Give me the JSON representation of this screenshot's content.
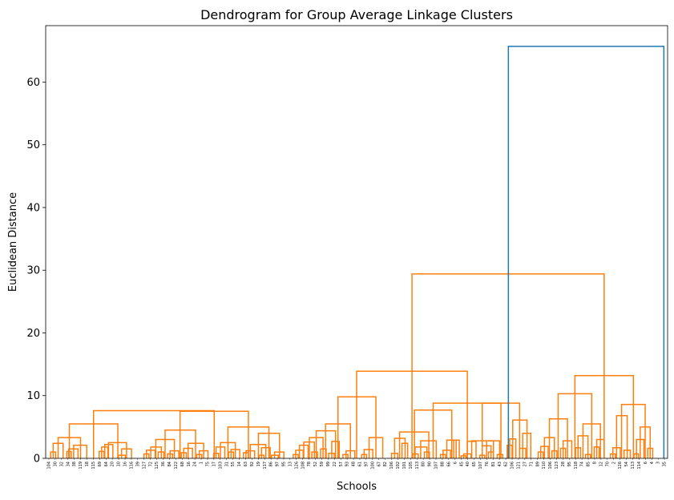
{
  "chart_data": {
    "type": "dendrogram",
    "title": "Dendrogram for Group Average Linkage Clusters",
    "xlabel": "Schools",
    "ylabel": "Euclidean Distance",
    "ylim": [
      0,
      69
    ],
    "yticks": [
      0,
      10,
      20,
      30,
      40,
      50,
      60
    ],
    "grid": false,
    "colors": {
      "cluster": "#ff7f0e",
      "above_threshold": "#1f77b4"
    },
    "leaf_labels": [
      "104",
      "30",
      "32",
      "34",
      "38",
      "119",
      "18",
      "115",
      "69",
      "64",
      "20",
      "10",
      "16",
      "116",
      "39",
      "127",
      "72",
      "125",
      "36",
      "84",
      "122",
      "68",
      "16",
      "24",
      "1",
      "75",
      "17",
      "103",
      "31",
      "55",
      "14",
      "63",
      "92",
      "19",
      "117",
      "86",
      "97",
      "95",
      "13",
      "126",
      "108",
      "78",
      "52",
      "59",
      "99",
      "22",
      "57",
      "93",
      "48",
      "61",
      "97",
      "100",
      "67",
      "82",
      "106",
      "102",
      "101",
      "105",
      "113",
      "80",
      "90",
      "107",
      "88",
      "66",
      "6",
      "45",
      "40",
      "65",
      "107",
      "76",
      "81",
      "43",
      "62",
      "106",
      "121",
      "27",
      "71",
      "89",
      "110",
      "106",
      "123",
      "28",
      "95",
      "118",
      "74",
      "85",
      "8",
      "12",
      "70",
      "2",
      "126",
      "54",
      "113",
      "114",
      "6",
      "4",
      "3",
      "35"
    ],
    "merges": [
      {
        "x1": 0.008,
        "x2": 0.016,
        "h": 1.0
      },
      {
        "x1": 0.012,
        "x2": 0.028,
        "h": 2.4
      },
      {
        "x1": 0.034,
        "x2": 0.041,
        "h": 1.1
      },
      {
        "x1": 0.037,
        "x2": 0.052,
        "h": 1.5
      },
      {
        "x1": 0.045,
        "x2": 0.066,
        "h": 2.1
      },
      {
        "x1": 0.02,
        "x2": 0.056,
        "h": 3.3
      },
      {
        "x1": 0.086,
        "x2": 0.094,
        "h": 1.1
      },
      {
        "x1": 0.09,
        "x2": 0.1,
        "h": 1.8
      },
      {
        "x1": 0.095,
        "x2": 0.108,
        "h": 2.2
      },
      {
        "x1": 0.117,
        "x2": 0.128,
        "h": 0.5
      },
      {
        "x1": 0.122,
        "x2": 0.138,
        "h": 1.5
      },
      {
        "x1": 0.101,
        "x2": 0.13,
        "h": 2.5
      },
      {
        "x1": 0.038,
        "x2": 0.116,
        "h": 5.5
      },
      {
        "x1": 0.158,
        "x2": 0.166,
        "h": 0.7
      },
      {
        "x1": 0.162,
        "x2": 0.176,
        "h": 1.3
      },
      {
        "x1": 0.181,
        "x2": 0.19,
        "h": 1.0
      },
      {
        "x1": 0.169,
        "x2": 0.186,
        "h": 1.8
      },
      {
        "x1": 0.196,
        "x2": 0.204,
        "h": 0.7
      },
      {
        "x1": 0.2,
        "x2": 0.214,
        "h": 1.2
      },
      {
        "x1": 0.177,
        "x2": 0.207,
        "h": 3.0
      },
      {
        "x1": 0.218,
        "x2": 0.226,
        "h": 0.9
      },
      {
        "x1": 0.222,
        "x2": 0.236,
        "h": 1.6
      },
      {
        "x1": 0.243,
        "x2": 0.251,
        "h": 0.6
      },
      {
        "x1": 0.247,
        "x2": 0.261,
        "h": 1.2
      },
      {
        "x1": 0.229,
        "x2": 0.254,
        "h": 2.4
      },
      {
        "x1": 0.192,
        "x2": 0.241,
        "h": 4.5
      },
      {
        "x1": 0.27,
        "x2": 0.278,
        "h": 0.8
      },
      {
        "x1": 0.274,
        "x2": 0.288,
        "h": 1.8
      },
      {
        "x1": 0.294,
        "x2": 0.302,
        "h": 1.0
      },
      {
        "x1": 0.298,
        "x2": 0.312,
        "h": 1.4
      },
      {
        "x1": 0.281,
        "x2": 0.305,
        "h": 2.5
      },
      {
        "x1": 0.318,
        "x2": 0.326,
        "h": 0.9
      },
      {
        "x1": 0.322,
        "x2": 0.336,
        "h": 1.2
      },
      {
        "x1": 0.343,
        "x2": 0.351,
        "h": 0.5
      },
      {
        "x1": 0.347,
        "x2": 0.361,
        "h": 1.7
      },
      {
        "x1": 0.329,
        "x2": 0.354,
        "h": 2.2
      },
      {
        "x1": 0.363,
        "x2": 0.374,
        "h": 0.5
      },
      {
        "x1": 0.368,
        "x2": 0.383,
        "h": 1.0
      },
      {
        "x1": 0.342,
        "x2": 0.376,
        "h": 4.0
      },
      {
        "x1": 0.293,
        "x2": 0.359,
        "h": 5.0
      },
      {
        "x1": 0.216,
        "x2": 0.326,
        "h": 7.5
      },
      {
        "x1": 0.077,
        "x2": 0.271,
        "h": 7.6
      },
      {
        "x1": 0.398,
        "x2": 0.406,
        "h": 0.6
      },
      {
        "x1": 0.402,
        "x2": 0.414,
        "h": 1.3
      },
      {
        "x1": 0.408,
        "x2": 0.422,
        "h": 2.1
      },
      {
        "x1": 0.428,
        "x2": 0.437,
        "h": 1.0
      },
      {
        "x1": 0.415,
        "x2": 0.432,
        "h": 2.6
      },
      {
        "x1": 0.442,
        "x2": 0.451,
        "h": 1.5
      },
      {
        "x1": 0.424,
        "x2": 0.446,
        "h": 3.3
      },
      {
        "x1": 0.455,
        "x2": 0.464,
        "h": 0.8
      },
      {
        "x1": 0.46,
        "x2": 0.472,
        "h": 2.7
      },
      {
        "x1": 0.435,
        "x2": 0.466,
        "h": 4.4
      },
      {
        "x1": 0.478,
        "x2": 0.486,
        "h": 0.6
      },
      {
        "x1": 0.483,
        "x2": 0.497,
        "h": 1.2
      },
      {
        "x1": 0.45,
        "x2": 0.49,
        "h": 5.5
      },
      {
        "x1": 0.508,
        "x2": 0.516,
        "h": 0.6
      },
      {
        "x1": 0.512,
        "x2": 0.526,
        "h": 1.4
      },
      {
        "x1": 0.52,
        "x2": 0.542,
        "h": 3.3
      },
      {
        "x1": 0.47,
        "x2": 0.531,
        "h": 9.8
      },
      {
        "x1": 0.556,
        "x2": 0.566,
        "h": 0.8
      },
      {
        "x1": 0.573,
        "x2": 0.582,
        "h": 2.4
      },
      {
        "x1": 0.561,
        "x2": 0.578,
        "h": 3.2
      },
      {
        "x1": 0.59,
        "x2": 0.599,
        "h": 0.7
      },
      {
        "x1": 0.609,
        "x2": 0.617,
        "h": 1.0
      },
      {
        "x1": 0.594,
        "x2": 0.613,
        "h": 1.8
      },
      {
        "x1": 0.603,
        "x2": 0.628,
        "h": 2.8
      },
      {
        "x1": 0.569,
        "x2": 0.616,
        "h": 4.2
      },
      {
        "x1": 0.635,
        "x2": 0.643,
        "h": 0.6
      },
      {
        "x1": 0.639,
        "x2": 0.651,
        "h": 1.3
      },
      {
        "x1": 0.656,
        "x2": 0.665,
        "h": 2.9
      },
      {
        "x1": 0.645,
        "x2": 0.66,
        "h": 2.9
      },
      {
        "x1": 0.593,
        "x2": 0.653,
        "h": 7.7
      },
      {
        "x1": 0.668,
        "x2": 0.676,
        "h": 0.4
      },
      {
        "x1": 0.672,
        "x2": 0.684,
        "h": 0.7
      },
      {
        "x1": 0.678,
        "x2": 0.692,
        "h": 2.7
      },
      {
        "x1": 0.698,
        "x2": 0.706,
        "h": 0.5
      },
      {
        "x1": 0.712,
        "x2": 0.72,
        "h": 1.0
      },
      {
        "x1": 0.702,
        "x2": 0.716,
        "h": 2.0
      },
      {
        "x1": 0.726,
        "x2": 0.735,
        "h": 0.6
      },
      {
        "x1": 0.709,
        "x2": 0.73,
        "h": 2.8
      },
      {
        "x1": 0.685,
        "x2": 0.72,
        "h": 2.8
      },
      {
        "x1": 0.742,
        "x2": 0.75,
        "h": 2.1
      },
      {
        "x1": 0.746,
        "x2": 0.756,
        "h": 3.1
      },
      {
        "x1": 0.762,
        "x2": 0.772,
        "h": 1.6
      },
      {
        "x1": 0.767,
        "x2": 0.78,
        "h": 4.0
      },
      {
        "x1": 0.751,
        "x2": 0.774,
        "h": 6.1
      },
      {
        "x1": 0.702,
        "x2": 0.762,
        "h": 8.8
      },
      {
        "x1": 0.623,
        "x2": 0.732,
        "h": 8.8
      },
      {
        "x1": 0.5,
        "x2": 0.678,
        "h": 13.9
      },
      {
        "x1": 0.792,
        "x2": 0.8,
        "h": 1.0
      },
      {
        "x1": 0.796,
        "x2": 0.808,
        "h": 1.9
      },
      {
        "x1": 0.814,
        "x2": 0.822,
        "h": 1.2
      },
      {
        "x1": 0.802,
        "x2": 0.818,
        "h": 3.3
      },
      {
        "x1": 0.828,
        "x2": 0.836,
        "h": 1.6
      },
      {
        "x1": 0.832,
        "x2": 0.846,
        "h": 2.8
      },
      {
        "x1": 0.81,
        "x2": 0.839,
        "h": 6.3
      },
      {
        "x1": 0.852,
        "x2": 0.86,
        "h": 1.7
      },
      {
        "x1": 0.868,
        "x2": 0.876,
        "h": 0.6
      },
      {
        "x1": 0.856,
        "x2": 0.872,
        "h": 3.6
      },
      {
        "x1": 0.882,
        "x2": 0.89,
        "h": 1.8
      },
      {
        "x1": 0.886,
        "x2": 0.898,
        "h": 3.0
      },
      {
        "x1": 0.864,
        "x2": 0.892,
        "h": 5.5
      },
      {
        "x1": 0.824,
        "x2": 0.878,
        "h": 10.3
      },
      {
        "x1": 0.908,
        "x2": 0.916,
        "h": 0.7
      },
      {
        "x1": 0.912,
        "x2": 0.924,
        "h": 1.7
      },
      {
        "x1": 0.93,
        "x2": 0.94,
        "h": 1.3
      },
      {
        "x1": 0.918,
        "x2": 0.935,
        "h": 6.8
      },
      {
        "x1": 0.946,
        "x2": 0.953,
        "h": 0.7
      },
      {
        "x1": 0.95,
        "x2": 0.962,
        "h": 3.0
      },
      {
        "x1": 0.968,
        "x2": 0.976,
        "h": 1.6
      },
      {
        "x1": 0.956,
        "x2": 0.972,
        "h": 5.0
      },
      {
        "x1": 0.926,
        "x2": 0.964,
        "h": 8.6
      },
      {
        "x1": 0.851,
        "x2": 0.945,
        "h": 13.2
      },
      {
        "x1": 0.589,
        "x2": 0.898,
        "h": 29.4
      },
      {
        "x1": 0.744,
        "x2": 0.994,
        "h": 65.7
      }
    ]
  }
}
